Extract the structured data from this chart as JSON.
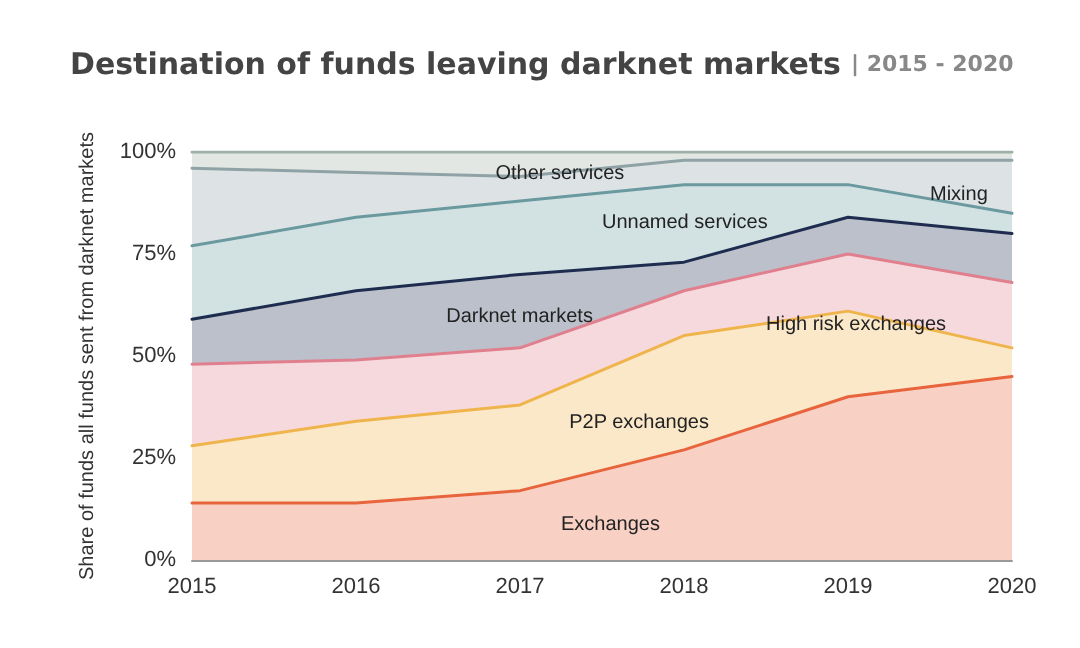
{
  "chart_data": {
    "type": "area",
    "stacked": true,
    "title": "Destination of funds leaving darknet markets",
    "subtitle": "| 2015 - 2020",
    "ylabel": "Share of funds all funds sent from darknet markets",
    "categories": [
      "2015",
      "2016",
      "2017",
      "2018",
      "2019",
      "2020"
    ],
    "ylim": [
      0,
      100
    ],
    "yticks": [
      {
        "value": 0,
        "label": "0%"
      },
      {
        "value": 25,
        "label": "25%"
      },
      {
        "value": 50,
        "label": "50%"
      },
      {
        "value": 75,
        "label": "75%"
      },
      {
        "value": 100,
        "label": "100%"
      }
    ],
    "grid": false,
    "marker": "none",
    "line_style": "solid",
    "series": [
      {
        "color": "#e8643c",
        "values": [
          14,
          14,
          17,
          27,
          40,
          45
        ]
      },
      {
        "color": "#f0b44c",
        "values": [
          14,
          20,
          21,
          28,
          21,
          7
        ]
      },
      {
        "color": "#e0808f",
        "values": [
          20,
          15,
          14,
          11,
          14,
          16
        ]
      },
      {
        "color": "#1e2d4f",
        "values": [
          11,
          17,
          18,
          7,
          9,
          12
        ]
      },
      {
        "color": "#6a9aa0",
        "values": [
          18,
          18,
          18,
          19,
          8,
          5
        ]
      },
      {
        "color": "#8fa3a6",
        "values": [
          19,
          11,
          6,
          6,
          6,
          13
        ]
      },
      {
        "color": "#9fb0a6",
        "values": [
          4,
          5,
          6,
          2,
          2,
          2
        ]
      }
    ],
    "annotations": [
      "Other services",
      "Mixing",
      "Unnamed services",
      "Darknet markets",
      "High risk exchanges",
      "P2P exchanges",
      "Exchanges"
    ]
  }
}
